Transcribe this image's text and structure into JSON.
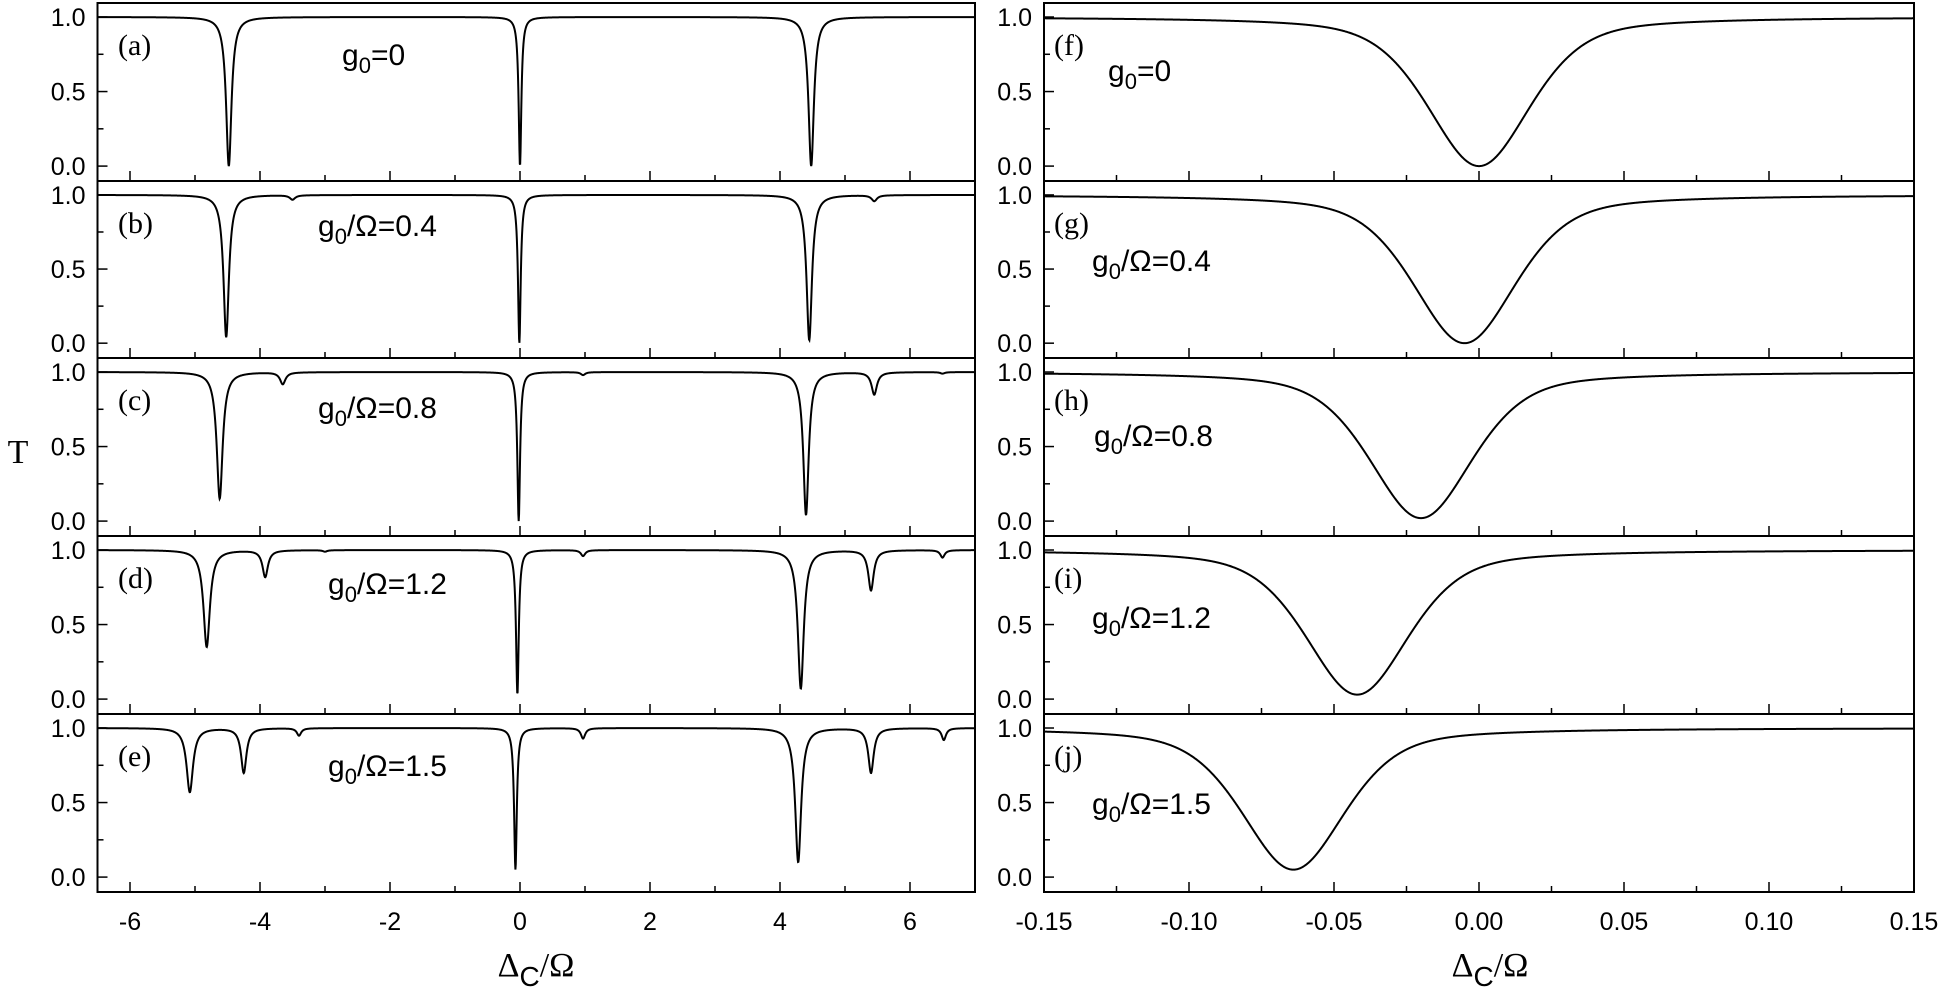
{
  "figure": {
    "y_axis_label": "T",
    "left": {
      "x_axis_label": {
        "main": "Δ",
        "sub": "C",
        "tail": "/Ω"
      },
      "xlim": [
        -6.5,
        7.0
      ],
      "xticks": [
        -6,
        -4,
        -2,
        0,
        2,
        4,
        6
      ],
      "xtick_labels": [
        "-6",
        "-4",
        "-2",
        "0",
        "2",
        "4",
        "6"
      ],
      "minor_xticks": [
        -5,
        -3,
        -1,
        1,
        3,
        5
      ]
    },
    "right": {
      "x_axis_label": {
        "main": "Δ",
        "sub": "C",
        "tail": "/Ω"
      },
      "xlim": [
        -0.15,
        0.15
      ],
      "xticks": [
        -0.15,
        -0.1,
        -0.05,
        0.0,
        0.05,
        0.1,
        0.15
      ],
      "xtick_labels": [
        "-0.15",
        "-0.10",
        "-0.05",
        "0.00",
        "0.05",
        "0.10",
        "0.15"
      ],
      "minor_xticks": [
        -0.125,
        -0.075,
        -0.025,
        0.025,
        0.075,
        0.125
      ]
    },
    "yticks": [
      0.0,
      0.5,
      1.0
    ],
    "ytick_labels": [
      "0.0",
      "0.5",
      "1.0"
    ],
    "minor_yticks": [
      0.25,
      0.75
    ],
    "ylim": [
      -0.1,
      1.094
    ]
  },
  "chart_data": [
    {
      "type": "line",
      "title": "Transmission T vs Δc/Ω (wide range), panels (a)-(e)",
      "xlabel": "Δc/Ω",
      "ylabel": "T",
      "xlim": [
        -6.5,
        7.0
      ],
      "ylim": [
        0.0,
        1.0
      ],
      "grid": false,
      "panels": [
        {
          "label": "(a)",
          "param": {
            "main": "g",
            "sub": "0",
            "tail": "=0"
          },
          "g0_over_Omega": 0,
          "dips": [
            {
              "x": -4.48,
              "min_T": 0.0,
              "width": 0.05
            },
            {
              "x": 0.0,
              "min_T": 0.0,
              "width": 0.025
            },
            {
              "x": 4.48,
              "min_T": 0.0,
              "width": 0.05
            }
          ]
        },
        {
          "label": "(b)",
          "param": {
            "main": "g",
            "sub": "0",
            "tail": "/Ω=0.4"
          },
          "g0_over_Omega": 0.4,
          "dips": [
            {
              "x": -4.52,
              "min_T": 0.04,
              "width": 0.05
            },
            {
              "x": -3.5,
              "min_T": 0.97,
              "width": 0.05
            },
            {
              "x": -0.01,
              "min_T": 0.0,
              "width": 0.025
            },
            {
              "x": 4.45,
              "min_T": 0.02,
              "width": 0.05
            },
            {
              "x": 5.45,
              "min_T": 0.96,
              "width": 0.05
            }
          ]
        },
        {
          "label": "(c)",
          "param": {
            "main": "g",
            "sub": "0",
            "tail": "/Ω=0.8"
          },
          "g0_over_Omega": 0.8,
          "dips": [
            {
              "x": -4.62,
              "min_T": 0.15,
              "width": 0.055
            },
            {
              "x": -3.65,
              "min_T": 0.92,
              "width": 0.05
            },
            {
              "x": -0.02,
              "min_T": 0.0,
              "width": 0.025
            },
            {
              "x": 0.97,
              "min_T": 0.98,
              "width": 0.04
            },
            {
              "x": 4.4,
              "min_T": 0.04,
              "width": 0.05
            },
            {
              "x": 5.45,
              "min_T": 0.85,
              "width": 0.05
            },
            {
              "x": 6.5,
              "min_T": 0.99,
              "width": 0.04
            }
          ]
        },
        {
          "label": "(d)",
          "param": {
            "main": "g",
            "sub": "0",
            "tail": "/Ω=1.2"
          },
          "g0_over_Omega": 1.2,
          "dips": [
            {
              "x": -4.82,
              "min_T": 0.35,
              "width": 0.06
            },
            {
              "x": -3.92,
              "min_T": 0.82,
              "width": 0.05
            },
            {
              "x": -3.0,
              "min_T": 0.99,
              "width": 0.04
            },
            {
              "x": -0.04,
              "min_T": 0.03,
              "width": 0.025
            },
            {
              "x": 0.97,
              "min_T": 0.96,
              "width": 0.04
            },
            {
              "x": 4.32,
              "min_T": 0.07,
              "width": 0.055
            },
            {
              "x": 5.4,
              "min_T": 0.73,
              "width": 0.05
            },
            {
              "x": 6.5,
              "min_T": 0.95,
              "width": 0.04
            }
          ]
        },
        {
          "label": "(e)",
          "param": {
            "main": "g",
            "sub": "0",
            "tail": "/Ω=1.5"
          },
          "g0_over_Omega": 1.5,
          "dips": [
            {
              "x": -5.08,
              "min_T": 0.57,
              "width": 0.06
            },
            {
              "x": -4.25,
              "min_T": 0.7,
              "width": 0.05
            },
            {
              "x": -3.4,
              "min_T": 0.95,
              "width": 0.04
            },
            {
              "x": -0.07,
              "min_T": 0.05,
              "width": 0.025
            },
            {
              "x": 0.97,
              "min_T": 0.93,
              "width": 0.04
            },
            {
              "x": 4.28,
              "min_T": 0.1,
              "width": 0.055
            },
            {
              "x": 5.4,
              "min_T": 0.7,
              "width": 0.05
            },
            {
              "x": 6.52,
              "min_T": 0.92,
              "width": 0.04
            }
          ]
        }
      ]
    },
    {
      "type": "line",
      "title": "Transmission T vs Δc/Ω (zoom near 0), panels (f)-(j)",
      "xlabel": "Δc/Ω",
      "ylabel": "T",
      "xlim": [
        -0.15,
        0.15
      ],
      "ylim": [
        0.0,
        1.0
      ],
      "grid": false,
      "panels": [
        {
          "label": "(f)",
          "param": {
            "main": "g",
            "sub": "0",
            "tail": "=0"
          },
          "g0_over_Omega": 0,
          "dips": [
            {
              "x": 0.0,
              "min_T": 0.0,
              "width": 0.021
            }
          ]
        },
        {
          "label": "(g)",
          "param": {
            "main": "g",
            "sub": "0",
            "tail": "/Ω=0.4"
          },
          "g0_over_Omega": 0.4,
          "dips": [
            {
              "x": -0.005,
              "min_T": 0.0,
              "width": 0.021
            }
          ]
        },
        {
          "label": "(h)",
          "param": {
            "main": "g",
            "sub": "0",
            "tail": "/Ω=0.8"
          },
          "g0_over_Omega": 0.8,
          "dips": [
            {
              "x": -0.02,
              "min_T": 0.02,
              "width": 0.021
            }
          ]
        },
        {
          "label": "(i)",
          "param": {
            "main": "g",
            "sub": "0",
            "tail": "/Ω=1.2"
          },
          "g0_over_Omega": 1.2,
          "dips": [
            {
              "x": -0.042,
              "min_T": 0.03,
              "width": 0.021
            }
          ]
        },
        {
          "label": "(j)",
          "param": {
            "main": "g",
            "sub": "0",
            "tail": "/Ω=1.5"
          },
          "g0_over_Omega": 1.5,
          "dips": [
            {
              "x": -0.064,
              "min_T": 0.05,
              "width": 0.021
            }
          ]
        }
      ]
    }
  ]
}
